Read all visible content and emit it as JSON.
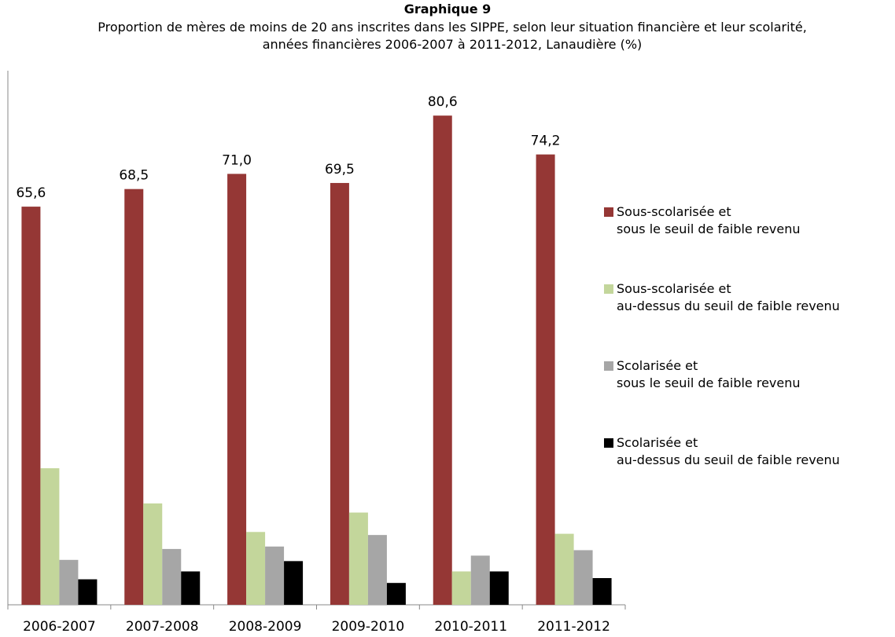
{
  "chart_data": {
    "type": "bar",
    "title": "Graphique 9",
    "subtitle": "Proportion de mères de moins de 20 ans inscrites dans les SIPPE, selon leur situation financière et leur scolarité,\nannées financières 2006-2007 à 2011-2012, Lanaudière (%)",
    "categories": [
      "2006-2007",
      "2007-2008",
      "2008-2009",
      "2009-2010",
      "2010-2011",
      "2011-2012"
    ],
    "ylim": [
      0,
      88
    ],
    "series": [
      {
        "name": "Sous-scolarisée et\nsous le seuil de faible revenu",
        "color": "#953735",
        "values": [
          65.6,
          68.5,
          71.0,
          69.5,
          80.6,
          74.2
        ],
        "value_labels": [
          "65,6",
          "68,5",
          "71,0",
          "69,5",
          "80,6",
          "74,2"
        ]
      },
      {
        "name": "Sous-scolarisée et\nau-dessus du seuil de faible revenu",
        "color": "#c3d69b",
        "values": [
          22.5,
          16.7,
          12.0,
          15.2,
          5.5,
          11.7
        ]
      },
      {
        "name": "Scolarisée et\nsous le seuil de faible revenu",
        "color": "#a6a6a6",
        "values": [
          7.4,
          9.2,
          9.6,
          11.5,
          8.1,
          9.0
        ]
      },
      {
        "name": "Scolarisée et\nau-dessus du seuil de faible revenu",
        "color": "#000000",
        "values": [
          4.2,
          5.5,
          7.2,
          3.6,
          5.5,
          4.4
        ]
      }
    ]
  }
}
